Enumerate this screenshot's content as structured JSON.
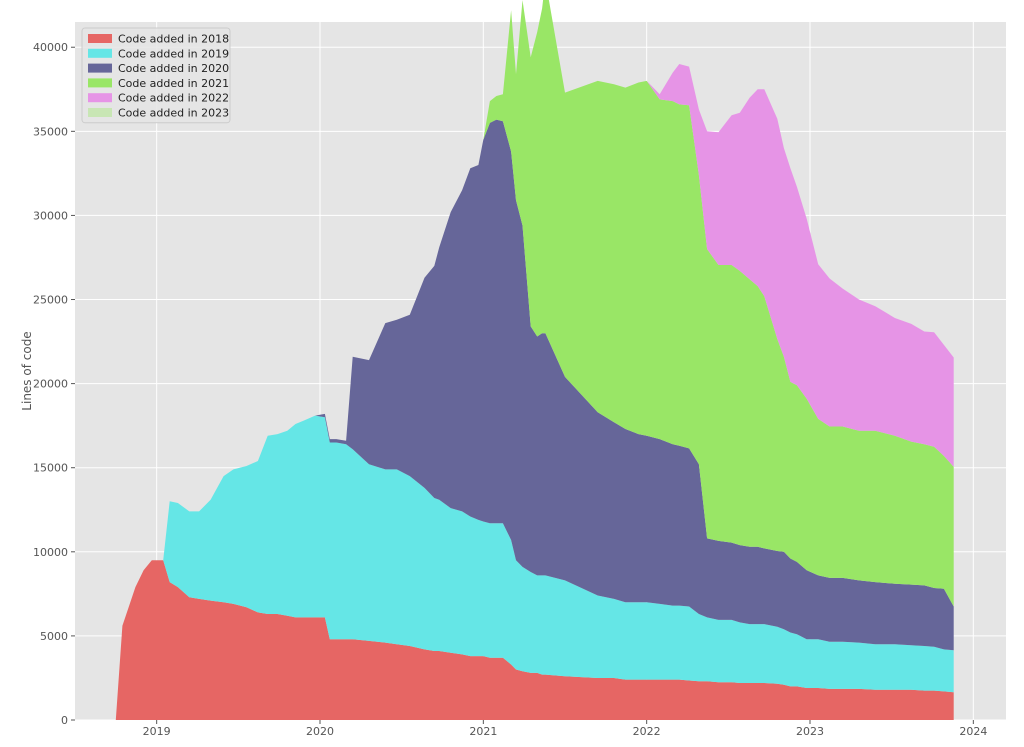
{
  "chart_data": {
    "type": "area",
    "stacked": true,
    "title": "",
    "xlabel": "",
    "ylabel": "Lines of code",
    "xlim": [
      2018.5,
      2024.2
    ],
    "ylim": [
      0,
      41500
    ],
    "x_ticks": [
      2019,
      2020,
      2021,
      2022,
      2023,
      2024
    ],
    "x_tick_labels": [
      "2019",
      "2020",
      "2021",
      "2022",
      "2023",
      "2024"
    ],
    "y_ticks": [
      0,
      5000,
      10000,
      15000,
      20000,
      25000,
      30000,
      35000,
      40000
    ],
    "y_tick_labels": [
      "0",
      "5000",
      "10000",
      "15000",
      "20000",
      "25000",
      "30000",
      "35000",
      "40000"
    ],
    "grid": true,
    "legend_position": "top-left",
    "x": [
      2018.75,
      2018.79,
      2018.87,
      2018.92,
      2018.97,
      2019.04,
      2019.08,
      2019.13,
      2019.2,
      2019.26,
      2019.33,
      2019.41,
      2019.47,
      2019.55,
      2019.62,
      2019.68,
      2019.74,
      2019.8,
      2019.85,
      2019.9,
      2019.97,
      2020.03,
      2020.06,
      2020.1,
      2020.16,
      2020.2,
      2020.3,
      2020.4,
      2020.47,
      2020.55,
      2020.64,
      2020.7,
      2020.73,
      2020.8,
      2020.87,
      2020.92,
      2020.97,
      2021.0,
      2021.04,
      2021.08,
      2021.12,
      2021.17,
      2021.2,
      2021.24,
      2021.29,
      2021.33,
      2021.36,
      2021.38,
      2021.5,
      2021.7,
      2021.8,
      2021.87,
      2021.95,
      2022.0,
      2022.08,
      2022.16,
      2022.2,
      2022.26,
      2022.32,
      2022.37,
      2022.44,
      2022.52,
      2022.57,
      2022.63,
      2022.68,
      2022.72,
      2022.8,
      2022.84,
      2022.88,
      2022.92,
      2022.98,
      2023.05,
      2023.12,
      2023.2,
      2023.3,
      2023.4,
      2023.52,
      2023.62,
      2023.7,
      2023.76,
      2023.82,
      2023.88
    ],
    "series": [
      {
        "name": "Code added in 2018",
        "color": "#e66664",
        "values": [
          0,
          5600,
          7900,
          8900,
          9500,
          9500,
          8200,
          7900,
          7300,
          7200,
          7100,
          7000,
          6900,
          6700,
          6400,
          6300,
          6300,
          6200,
          6100,
          6100,
          6100,
          6100,
          4800,
          4800,
          4800,
          4800,
          4700,
          4600,
          4500,
          4400,
          4200,
          4100,
          4100,
          4000,
          3900,
          3800,
          3800,
          3800,
          3700,
          3700,
          3700,
          3300,
          3000,
          2900,
          2800,
          2800,
          2700,
          2700,
          2600,
          2500,
          2500,
          2400,
          2400,
          2400,
          2400,
          2400,
          2400,
          2350,
          2300,
          2300,
          2250,
          2250,
          2200,
          2200,
          2200,
          2200,
          2150,
          2100,
          2000,
          2000,
          1900,
          1900,
          1850,
          1850,
          1850,
          1800,
          1800,
          1800,
          1750,
          1750,
          1700,
          1650
        ]
      },
      {
        "name": "Code added in 2019",
        "color": "#65e6e6",
        "values": [
          0,
          0,
          0,
          0,
          0,
          0,
          4800,
          5000,
          5100,
          5200,
          6000,
          7500,
          8000,
          8400,
          9000,
          10600,
          10700,
          11000,
          11500,
          11700,
          12000,
          11900,
          11700,
          11700,
          11600,
          11300,
          10500,
          10300,
          10400,
          10100,
          9600,
          9100,
          9000,
          8600,
          8500,
          8300,
          8100,
          8000,
          8000,
          8000,
          8000,
          7400,
          6500,
          6200,
          6000,
          5800,
          5900,
          5900,
          5700,
          4900,
          4700,
          4600,
          4600,
          4600,
          4500,
          4400,
          4400,
          4400,
          4000,
          3800,
          3700,
          3700,
          3600,
          3500,
          3500,
          3500,
          3400,
          3300,
          3200,
          3100,
          2900,
          2900,
          2800,
          2800,
          2750,
          2700,
          2700,
          2650,
          2650,
          2600,
          2500,
          2500
        ]
      },
      {
        "name": "Code added in 2020",
        "color": "#666699",
        "values": [
          0,
          0,
          0,
          0,
          0,
          0,
          0,
          0,
          0,
          0,
          0,
          0,
          0,
          0,
          0,
          0,
          0,
          0,
          0,
          0,
          0,
          200,
          200,
          200,
          200,
          5500,
          6200,
          8700,
          8900,
          9600,
          12500,
          13800,
          15000,
          17600,
          19100,
          20700,
          21100,
          22700,
          23800,
          24000,
          23900,
          23100,
          21400,
          20300,
          14600,
          14200,
          14400,
          14400,
          12100,
          10900,
          10500,
          10300,
          10000,
          9900,
          9800,
          9600,
          9500,
          9400,
          8900,
          4700,
          4700,
          4600,
          4600,
          4600,
          4600,
          4500,
          4500,
          4600,
          4400,
          4300,
          4100,
          3800,
          3800,
          3800,
          3700,
          3700,
          3600,
          3600,
          3600,
          3500,
          3600,
          2600
        ]
      },
      {
        "name": "Code added in 2021",
        "color": "#99e666",
        "values": [
          0,
          0,
          0,
          0,
          0,
          0,
          0,
          0,
          0,
          0,
          0,
          0,
          0,
          0,
          0,
          0,
          0,
          0,
          0,
          0,
          0,
          0,
          0,
          0,
          0,
          0,
          0,
          0,
          0,
          0,
          0,
          0,
          0,
          0,
          0,
          0,
          0,
          0,
          1300,
          1400,
          1600,
          8400,
          7500,
          13400,
          16000,
          18100,
          19300,
          21000,
          16900,
          19700,
          20100,
          20300,
          20900,
          21100,
          20200,
          20400,
          20300,
          20400,
          17200,
          17200,
          16400,
          16500,
          16300,
          15900,
          15500,
          15000,
          12600,
          11600,
          10500,
          10500,
          10200,
          9300,
          9000,
          9000,
          8900,
          9000,
          8800,
          8500,
          8400,
          8400,
          7900,
          8300
        ]
      },
      {
        "name": "Code added in 2022",
        "color": "#e694e6",
        "values": [
          0,
          0,
          0,
          0,
          0,
          0,
          0,
          0,
          0,
          0,
          0,
          0,
          0,
          0,
          0,
          0,
          0,
          0,
          0,
          0,
          0,
          0,
          0,
          0,
          0,
          0,
          0,
          0,
          0,
          0,
          0,
          0,
          0,
          0,
          0,
          0,
          0,
          0,
          0,
          0,
          0,
          0,
          0,
          0,
          0,
          0,
          0,
          0,
          0,
          0,
          0,
          0,
          0,
          0,
          300,
          1700,
          2400,
          2300,
          3900,
          7000,
          7900,
          8900,
          9400,
          10800,
          11700,
          12300,
          13100,
          12400,
          12700,
          11800,
          10700,
          9200,
          8800,
          8200,
          7800,
          7400,
          7000,
          7000,
          6700,
          6800,
          6600,
          6500
        ]
      },
      {
        "name": "Code added in 2023",
        "color": "#c8e6b4",
        "values": [
          0,
          0,
          0,
          0,
          0,
          0,
          0,
          0,
          0,
          0,
          0,
          0,
          0,
          0,
          0,
          0,
          0,
          0,
          0,
          0,
          0,
          0,
          0,
          0,
          0,
          0,
          0,
          0,
          0,
          0,
          0,
          0,
          0,
          0,
          0,
          0,
          0,
          0,
          0,
          0,
          0,
          0,
          0,
          0,
          0,
          0,
          0,
          0,
          0,
          0,
          0,
          0,
          0,
          0,
          0,
          0,
          0,
          0,
          0,
          0,
          0,
          0,
          0,
          0,
          0,
          0,
          0,
          0,
          0,
          0,
          0,
          0,
          0,
          0,
          0,
          0,
          0,
          0,
          0,
          0,
          0,
          0
        ]
      }
    ]
  }
}
